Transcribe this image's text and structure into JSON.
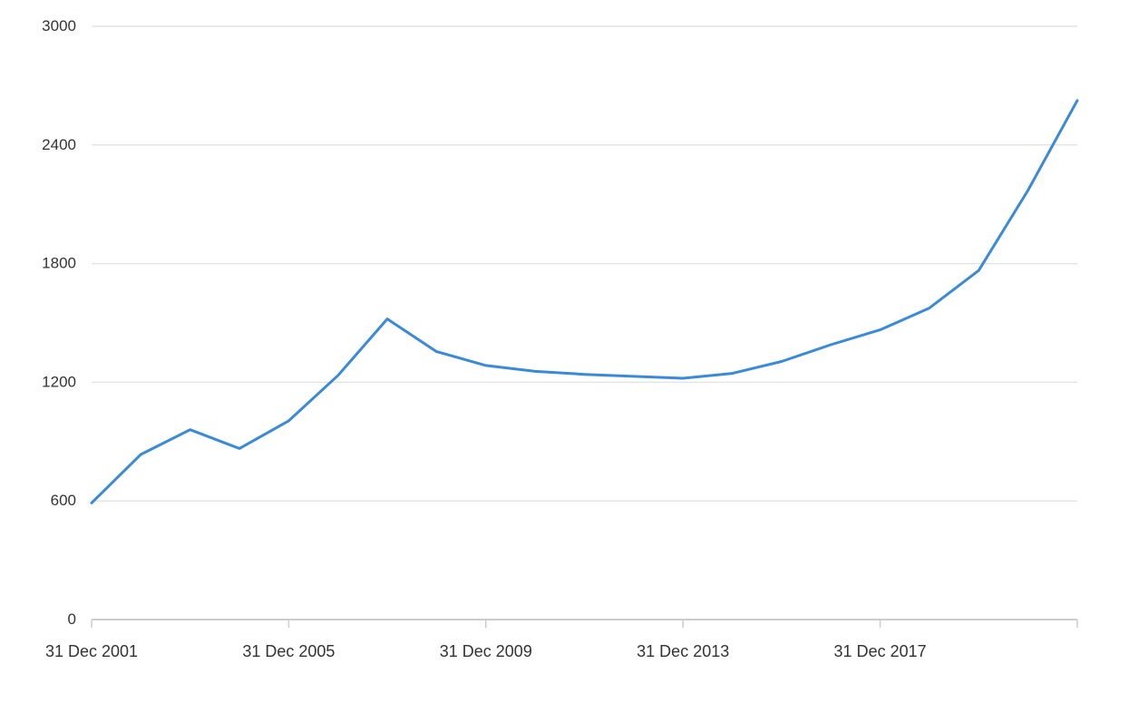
{
  "chart_data": {
    "type": "line",
    "title": "",
    "xlabel": "",
    "ylabel": "",
    "x": [
      "31 Dec 2001",
      "31 Dec 2002",
      "31 Dec 2003",
      "31 Dec 2004",
      "31 Dec 2005",
      "31 Dec 2006",
      "31 Dec 2007",
      "31 Dec 2008",
      "31 Dec 2009",
      "31 Dec 2010",
      "31 Dec 2011",
      "31 Dec 2012",
      "31 Dec 2013",
      "31 Dec 2014",
      "31 Dec 2015",
      "31 Dec 2016",
      "31 Dec 2017",
      "31 Dec 2018",
      "31 Dec 2019",
      "31 Dec 2020",
      "31 Dec 2021"
    ],
    "series": [
      {
        "values": [
          590,
          835,
          960,
          865,
          1005,
          1235,
          1520,
          1355,
          1285,
          1255,
          1240,
          1230,
          1220,
          1245,
          1305,
          1390,
          1465,
          1575,
          1765,
          2170,
          2625
        ]
      }
    ],
    "x_tick_labels": [
      "31 Dec 2001",
      "31 Dec 2005",
      "31 Dec 2009",
      "31 Dec 2013",
      "31 Dec 2017"
    ],
    "y_tick_labels": [
      "0",
      "600",
      "1200",
      "1800",
      "2400",
      "3000"
    ],
    "ylim": [
      0,
      3000
    ],
    "grid": true,
    "colors": {
      "line": "#3a8ad9",
      "grid": "#e4e4e4",
      "axis": "#cccccc",
      "tick_text": "#333333"
    }
  }
}
